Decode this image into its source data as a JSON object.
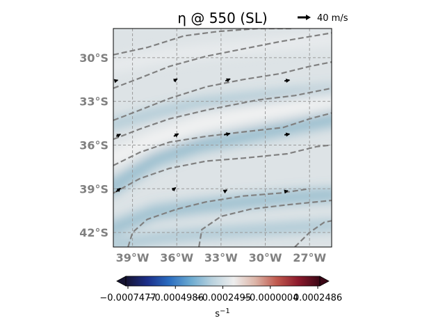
{
  "title": "η @ 550 (SL)",
  "quiver_key": {
    "label": "40 m/s"
  },
  "map": {
    "lon_range": [
      -40.3,
      -25.5
    ],
    "lat_range": [
      -43.0,
      -28.0
    ],
    "lon_ticks": [
      {
        "value": -39,
        "label": "39°W"
      },
      {
        "value": -36,
        "label": "36°W"
      },
      {
        "value": -33,
        "label": "33°W"
      },
      {
        "value": -30,
        "label": "30°W"
      },
      {
        "value": -27,
        "label": "27°W"
      }
    ],
    "lat_ticks": [
      {
        "value": -30,
        "label": "30°S"
      },
      {
        "value": -33,
        "label": "33°S"
      },
      {
        "value": -36,
        "label": "36°S"
      },
      {
        "value": -39,
        "label": "39°S"
      },
      {
        "value": -42,
        "label": "42°S"
      }
    ],
    "gridlines": true,
    "contour_color": "#808080",
    "background_color": "#dde3e6",
    "band_color": "#5f9fba",
    "light_band_color": "#f2f2f2"
  },
  "colorbar": {
    "tick_labels": [
      "−0.0007477",
      "−0.0004986",
      "−0.0002495",
      "−0.0000004",
      "0.0002486"
    ],
    "unit": "s",
    "unit_exp": "−1",
    "colors": [
      "#161432",
      "#1c2f8a",
      "#2a6cc0",
      "#6aa9d0",
      "#b9d2de",
      "#eeeeee",
      "#dcb5a8",
      "#c0594e",
      "#8c1a2c",
      "#3b0716"
    ]
  },
  "chart_data": {
    "type": "map",
    "title": "η @ 550 (SL)",
    "colorbar_unit": "s^-1",
    "colorbar_range": [
      -0.0007477,
      0.0002486
    ],
    "vectors": [
      {
        "lon": -40.2,
        "lat": -31.6,
        "dx": 0.35,
        "dy": 0.1
      },
      {
        "lon": -36.2,
        "lat": -31.6,
        "dx": 0.4,
        "dy": 0.25
      },
      {
        "lon": -32.7,
        "lat": -31.6,
        "dx": 0.55,
        "dy": 0.25
      },
      {
        "lon": -28.7,
        "lat": -31.6,
        "dx": 0.6,
        "dy": 0.1
      },
      {
        "lon": -40.1,
        "lat": -35.4,
        "dx": 0.5,
        "dy": 0.25
      },
      {
        "lon": -36.2,
        "lat": -35.4,
        "dx": 0.55,
        "dy": 0.3
      },
      {
        "lon": -32.8,
        "lat": -35.3,
        "dx": 0.7,
        "dy": 0.15
      },
      {
        "lon": -28.7,
        "lat": -35.3,
        "dx": 0.6,
        "dy": 0.1
      },
      {
        "lon": -40.1,
        "lat": -39.2,
        "dx": 0.5,
        "dy": 0.4
      },
      {
        "lon": -36.3,
        "lat": -39.1,
        "dx": 0.4,
        "dy": 0.3
      },
      {
        "lon": -32.8,
        "lat": -39.2,
        "dx": 0.35,
        "dy": 0.2
      },
      {
        "lon": -28.7,
        "lat": -39.2,
        "dx": 0.4,
        "dy": 0.1
      }
    ],
    "contours": [
      [
        [
          -40.3,
          -29.8
        ],
        [
          -38.0,
          -29.3
        ],
        [
          -35.5,
          -28.5
        ],
        [
          -33.2,
          -28.2
        ],
        [
          -30.5,
          -28.0
        ],
        [
          -28.2,
          -28.0
        ]
      ],
      [
        [
          -40.3,
          -32.1
        ],
        [
          -38.5,
          -31.4
        ],
        [
          -36.5,
          -30.6
        ],
        [
          -34.0,
          -29.9
        ],
        [
          -31.5,
          -29.4
        ],
        [
          -29.0,
          -28.9
        ],
        [
          -25.5,
          -28.3
        ]
      ],
      [
        [
          -40.3,
          -34.3
        ],
        [
          -38.5,
          -33.6
        ],
        [
          -36.5,
          -32.8
        ],
        [
          -34.0,
          -32.0
        ],
        [
          -31.5,
          -31.5
        ],
        [
          -29.0,
          -31.1
        ],
        [
          -27.0,
          -30.6
        ],
        [
          -25.5,
          -30.3
        ]
      ],
      [
        [
          -40.3,
          -35.6
        ],
        [
          -38.5,
          -34.9
        ],
        [
          -36.5,
          -34.2
        ],
        [
          -34.0,
          -33.6
        ],
        [
          -32.0,
          -33.2
        ],
        [
          -30.5,
          -32.9
        ],
        [
          -28.0,
          -32.6
        ],
        [
          -25.5,
          -32.1
        ]
      ],
      [
        [
          -40.3,
          -37.4
        ],
        [
          -38.5,
          -36.5
        ],
        [
          -36.5,
          -35.8
        ],
        [
          -34.0,
          -35.4
        ],
        [
          -31.5,
          -35.1
        ],
        [
          -28.8,
          -34.8
        ],
        [
          -27.0,
          -34.2
        ],
        [
          -25.5,
          -33.8
        ]
      ],
      [
        [
          -40.3,
          -39.3
        ],
        [
          -38.5,
          -38.3
        ],
        [
          -36.5,
          -37.6
        ],
        [
          -34.0,
          -37.1
        ],
        [
          -31.5,
          -36.9
        ],
        [
          -28.5,
          -36.6
        ],
        [
          -26.5,
          -36.1
        ],
        [
          -25.5,
          -36.0
        ]
      ],
      [
        [
          -39.3,
          -43.0
        ],
        [
          -39.0,
          -42.0
        ],
        [
          -38.0,
          -41.1
        ],
        [
          -36.0,
          -40.4
        ],
        [
          -34.0,
          -39.9
        ],
        [
          -31.5,
          -39.5
        ],
        [
          -29.0,
          -39.3
        ],
        [
          -27.0,
          -39.0
        ]
      ],
      [
        [
          -34.5,
          -43.0
        ],
        [
          -34.3,
          -41.8
        ],
        [
          -33.0,
          -40.9
        ],
        [
          -31.0,
          -40.4
        ],
        [
          -28.5,
          -40.1
        ],
        [
          -26.5,
          -39.9
        ],
        [
          -25.5,
          -39.8
        ]
      ],
      [
        [
          -28.0,
          -43.0
        ],
        [
          -27.0,
          -42.0
        ],
        [
          -26.0,
          -41.3
        ],
        [
          -25.5,
          -41.2
        ]
      ]
    ]
  }
}
